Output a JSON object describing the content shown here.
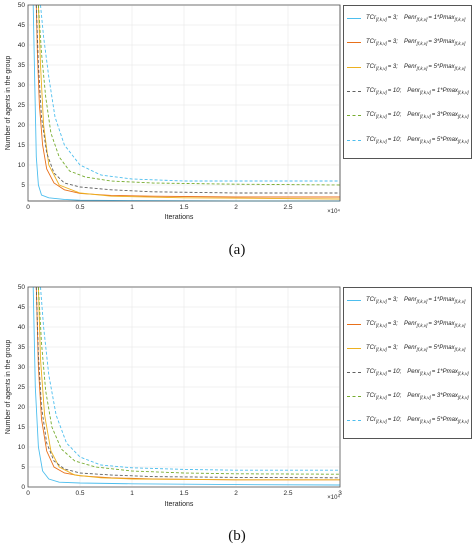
{
  "captions": [
    "(a)",
    "(b)"
  ],
  "colors": [
    "#4dbeee",
    "#e8701a",
    "#edb120",
    "#606060",
    "#77ac30",
    "#4dbeee"
  ],
  "chart_data": [
    {
      "type": "line",
      "xlabel": "Iterations",
      "ylabel": "Number of agents in the group",
      "x_multiplier": "×10⁴",
      "xlim": [
        0,
        3
      ],
      "ylim": [
        1,
        50
      ],
      "xticks": [
        "0",
        "0.5",
        "1",
        "1.5",
        "2",
        "2.5"
      ],
      "yticks": [
        "5",
        "10",
        "15",
        "20",
        "25",
        "30",
        "35",
        "40",
        "45",
        "50"
      ],
      "grid": true,
      "legend_position": "right",
      "series": [
        {
          "name": "TCr(f,k,v) = 3;   Penr(f,k,v) = 1*Pmax(f,k,v)",
          "dash": "solid",
          "x": [
            0.05,
            0.065,
            0.08,
            0.1,
            0.13,
            0.2,
            0.35,
            0.5,
            1.0,
            2.0,
            3.0
          ],
          "y": [
            50,
            30,
            12,
            5,
            2.5,
            1.8,
            1.4,
            1.2,
            1.1,
            1.0,
            1.0
          ]
        },
        {
          "name": "TCr(f,k,v) = 3;   Penr(f,k,v) = 3*Pmax(f,k,v)",
          "dash": "solid",
          "x": [
            0.08,
            0.09,
            0.11,
            0.14,
            0.18,
            0.25,
            0.35,
            0.5,
            0.8,
            1.2,
            2.0,
            3.0
          ],
          "y": [
            50,
            38,
            25,
            15,
            9,
            5.5,
            3.8,
            2.9,
            2.4,
            2.2,
            2.0,
            2.0
          ]
        },
        {
          "name": "TCr(f,k,v) = 3;   Penr(f,k,v) = 5*Pmax(f,k,v)",
          "dash": "solid",
          "x": [
            0.1,
            0.12,
            0.15,
            0.2,
            0.3,
            0.5,
            0.8,
            1.5,
            3.0
          ],
          "y": [
            50,
            35,
            20,
            10,
            5,
            3,
            2.2,
            1.8,
            1.5
          ]
        },
        {
          "name": "TCr(f,k,v) = 10;   Penr(f,k,v) = 1*Pmax(f,k,v)",
          "dash": "dashed",
          "x": [
            0.08,
            0.1,
            0.13,
            0.18,
            0.25,
            0.35,
            0.5,
            0.8,
            1.2,
            2.0,
            3.0
          ],
          "y": [
            50,
            35,
            22,
            13,
            8,
            5.5,
            4.5,
            3.8,
            3.3,
            3.0,
            3.0
          ]
        },
        {
          "name": "TCr(f,k,v) = 10;   Penr(f,k,v) = 3*Pmax(f,k,v)",
          "dash": "dashed",
          "x": [
            0.1,
            0.13,
            0.17,
            0.22,
            0.3,
            0.4,
            0.55,
            0.8,
            1.2,
            2.0,
            3.0
          ],
          "y": [
            50,
            38,
            27,
            18,
            12,
            8.5,
            7,
            6,
            5.5,
            5.2,
            5.0
          ]
        },
        {
          "name": "TCr(f,k,v) = 10;   Penr(f,k,v) = 5*Pmax(f,k,v)",
          "dash": "dashed",
          "x": [
            0.12,
            0.15,
            0.2,
            0.26,
            0.35,
            0.5,
            0.7,
            1.0,
            1.5,
            2.0,
            3.0
          ],
          "y": [
            50,
            42,
            32,
            22,
            15,
            10,
            7.5,
            6.5,
            6,
            6,
            6
          ]
        }
      ]
    },
    {
      "type": "line",
      "xlabel": "Iterations",
      "ylabel": "Number of agents in the group",
      "x_multiplier": "×10⁴",
      "xlim": [
        0,
        3
      ],
      "ylim": [
        0,
        50
      ],
      "xticks": [
        "0",
        "0.5",
        "1",
        "1.5",
        "2",
        "2.5",
        "3"
      ],
      "yticks": [
        "0",
        "5",
        "10",
        "15",
        "20",
        "25",
        "30",
        "35",
        "40",
        "45",
        "50"
      ],
      "grid": true,
      "legend_position": "right",
      "series": [
        {
          "name": "TCr(f,k,v) = 3;   Penr(f,k,v) = 1*Pmax(f,k,v)",
          "dash": "solid",
          "x": [
            0.05,
            0.07,
            0.1,
            0.14,
            0.2,
            0.3,
            0.5,
            1.0,
            2.0,
            3.0
          ],
          "y": [
            50,
            25,
            10,
            4,
            2,
            1.2,
            1.0,
            0.8,
            0.6,
            0.5
          ]
        },
        {
          "name": "TCr(f,k,v) = 3;   Penr(f,k,v) = 3*Pmax(f,k,v)",
          "dash": "solid",
          "x": [
            0.08,
            0.1,
            0.13,
            0.18,
            0.25,
            0.35,
            0.5,
            0.8,
            1.2,
            2.0,
            3.0
          ],
          "y": [
            50,
            30,
            17,
            9,
            5,
            3.5,
            2.8,
            2.3,
            2.0,
            1.8,
            1.8
          ]
        },
        {
          "name": "TCr(f,k,v) = 3;   Penr(f,k,v) = 5*Pmax(f,k,v)",
          "dash": "solid",
          "x": [
            0.1,
            0.12,
            0.16,
            0.22,
            0.3,
            0.45,
            0.7,
            1.0,
            2.0,
            3.0
          ],
          "y": [
            50,
            32,
            18,
            9,
            5,
            3,
            2.3,
            2.0,
            1.8,
            1.8
          ]
        },
        {
          "name": "TCr(f,k,v) = 10;   Penr(f,k,v) = 1*Pmax(f,k,v)",
          "dash": "dashed",
          "x": [
            0.08,
            0.1,
            0.13,
            0.18,
            0.25,
            0.35,
            0.5,
            0.8,
            1.2,
            2.0,
            3.0
          ],
          "y": [
            50,
            33,
            20,
            11,
            6.5,
            4.5,
            3.5,
            3.0,
            2.6,
            2.4,
            2.3
          ]
        },
        {
          "name": "TCr(f,k,v) = 10;   Penr(f,k,v) = 3*Pmax(f,k,v)",
          "dash": "dashed",
          "x": [
            0.1,
            0.13,
            0.17,
            0.23,
            0.32,
            0.45,
            0.65,
            1.0,
            1.5,
            2.0,
            3.0
          ],
          "y": [
            50,
            36,
            24,
            15,
            9.5,
            6.5,
            5,
            4,
            3.5,
            3.3,
            3.2
          ]
        },
        {
          "name": "TCr(f,k,v) = 10;   Penr(f,k,v) = 5*Pmax(f,k,v)",
          "dash": "dashed",
          "x": [
            0.12,
            0.15,
            0.2,
            0.27,
            0.37,
            0.5,
            0.7,
            1.0,
            1.5,
            2.0,
            3.0
          ],
          "y": [
            50,
            40,
            28,
            18,
            11,
            7.5,
            5.5,
            4.8,
            4.4,
            4.2,
            4.2
          ]
        }
      ]
    }
  ],
  "legend": [
    [
      {
        "tc": "TCr",
        "tc_sub": "[f,k,v]",
        "tc_val": "= 3;",
        "pen": "Penr",
        "pen_sub": "[f,k,v]",
        "pen_val": "= 1*Pmax",
        "pmax_sub": "[f,k,v]"
      },
      {
        "tc": "TCr",
        "tc_sub": "[f,k,v]",
        "tc_val": "= 3;",
        "pen": "Penr",
        "pen_sub": "[f,k,v]",
        "pen_val": "= 3*Pmax",
        "pmax_sub": "[f,k,v]"
      },
      {
        "tc": "TCr",
        "tc_sub": "[f,k,v]",
        "tc_val": "= 3;",
        "pen": "Penr",
        "pen_sub": "[f,k,v]",
        "pen_val": "= 5*Pmax",
        "pmax_sub": "[f,k,v]"
      },
      {
        "tc": "TCr",
        "tc_sub": "[f,k,v]",
        "tc_val": "= 10;",
        "pen": "Penr",
        "pen_sub": "[f,k,v]",
        "pen_val": "= 1*Pmax",
        "pmax_sub": "[f,k,v]"
      },
      {
        "tc": "TCr",
        "tc_sub": "[f,k,v]",
        "tc_val": "= 10;",
        "pen": "Penr",
        "pen_sub": "[f,k,v]",
        "pen_val": "= 3*Pmax",
        "pmax_sub": "[f,k,v]"
      },
      {
        "tc": "TCr",
        "tc_sub": "[f,k,v]",
        "tc_val": "= 10;",
        "pen": "Penr",
        "pen_sub": "[f,k,v]",
        "pen_val": "= 5*Pmax",
        "pmax_sub": "[f,k,v]"
      }
    ],
    [
      {
        "tc": "TCr",
        "tc_sub": "[f,k,v]",
        "tc_val": "= 3;",
        "pen": "Penr",
        "pen_sub": "[f,k,v]",
        "pen_val": "= 1*Pmax",
        "pmax_sub": "[f,k,v]"
      },
      {
        "tc": "TCr",
        "tc_sub": "[f,k,v]",
        "tc_val": "= 3;",
        "pen": "Penr",
        "pen_sub": "[f,k,v]",
        "pen_val": "= 3*Pmax",
        "pmax_sub": "[f,k,v]"
      },
      {
        "tc": "TCr",
        "tc_sub": "[f,k,v]",
        "tc_val": "= 3;",
        "pen": "Penr",
        "pen_sub": "[f,k,v]",
        "pen_val": "= 5*Pmax",
        "pmax_sub": "[f,k,v]"
      },
      {
        "tc": "TCr",
        "tc_sub": "[f,k,v]",
        "tc_val": "= 10;",
        "pen": "Penr",
        "pen_sub": "[f,k,v]",
        "pen_val": "= 1*Pmax",
        "pmax_sub": "[f,k,v]"
      },
      {
        "tc": "TCr",
        "tc_sub": "[f,k,v]",
        "tc_val": "= 10;",
        "pen": "Penr",
        "pen_sub": "[f,k,v]",
        "pen_val": "= 3*Pmax",
        "pmax_sub": "[f,k,v]"
      },
      {
        "tc": "TCr",
        "tc_sub": "[f,k,v]",
        "tc_val": "= 10;",
        "pen": "Penr",
        "pen_sub": "[f,k,v]",
        "pen_val": "= 5*Pmax",
        "pmax_sub": "[f,k,v]"
      }
    ]
  ]
}
